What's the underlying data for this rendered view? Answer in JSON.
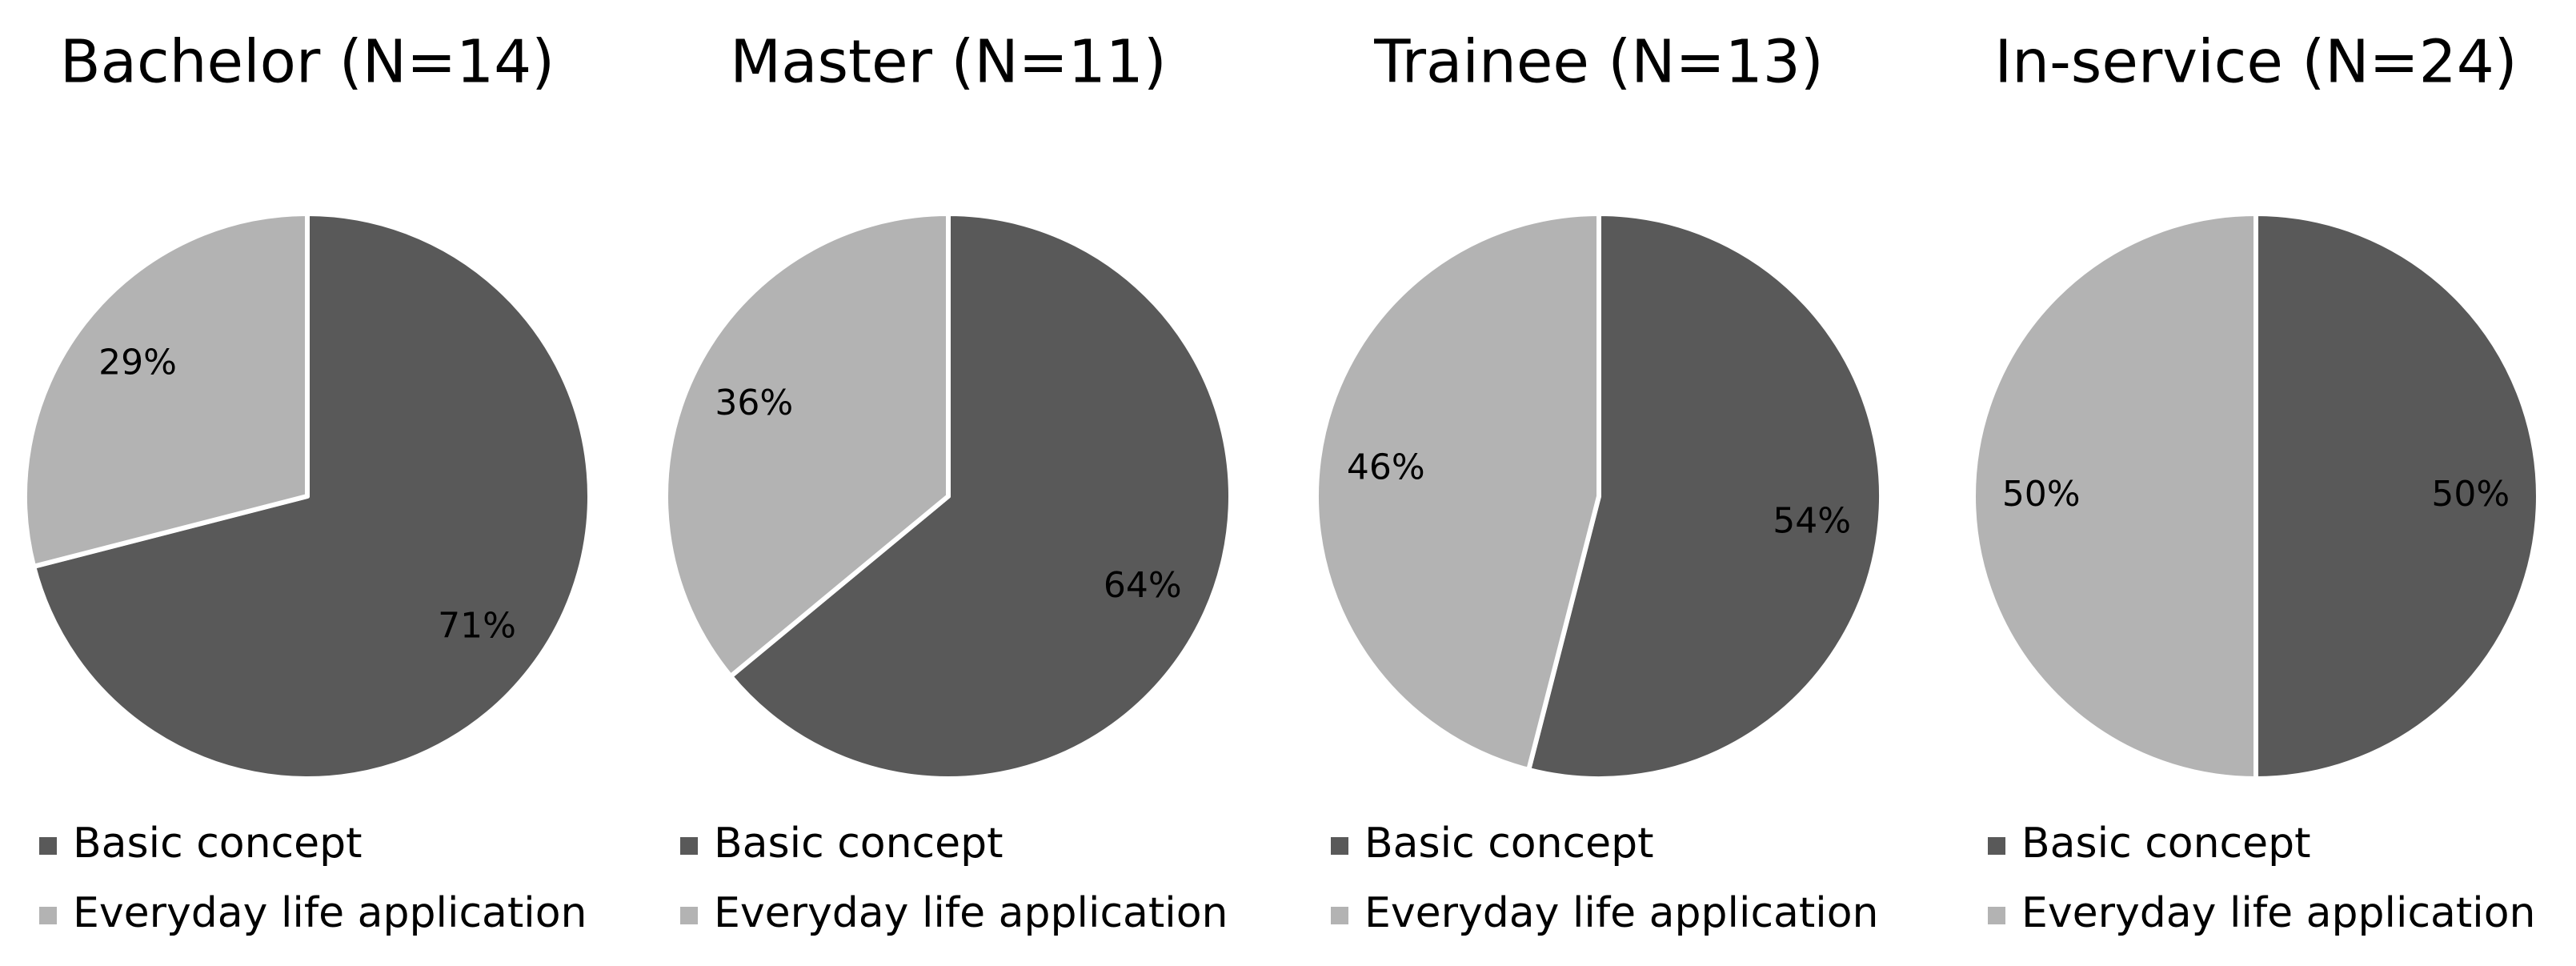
{
  "chart_data": [
    {
      "type": "pie",
      "title": "Bachelor (N=14)",
      "categories": [
        "Basic concept",
        "Everyday life application"
      ],
      "values": [
        71,
        29
      ],
      "value_labels": [
        "71%",
        "29%"
      ],
      "colors": [
        "#595959",
        "#b3b3b3"
      ]
    },
    {
      "type": "pie",
      "title": "Master (N=11)",
      "categories": [
        "Basic concept",
        "Everyday life application"
      ],
      "values": [
        64,
        36
      ],
      "value_labels": [
        "64%",
        "36%"
      ],
      "colors": [
        "#595959",
        "#b3b3b3"
      ]
    },
    {
      "type": "pie",
      "title": "Trainee (N=13)",
      "categories": [
        "Basic concept",
        "Everyday life application"
      ],
      "values": [
        54,
        46
      ],
      "value_labels": [
        "54%",
        "46%"
      ],
      "colors": [
        "#595959",
        "#b3b3b3"
      ]
    },
    {
      "type": "pie",
      "title": "In-service (N=24)",
      "categories": [
        "Basic concept",
        "Everyday life application"
      ],
      "values": [
        50,
        50
      ],
      "value_labels": [
        "50%",
        "50%"
      ],
      "colors": [
        "#595959",
        "#b3b3b3"
      ]
    }
  ]
}
